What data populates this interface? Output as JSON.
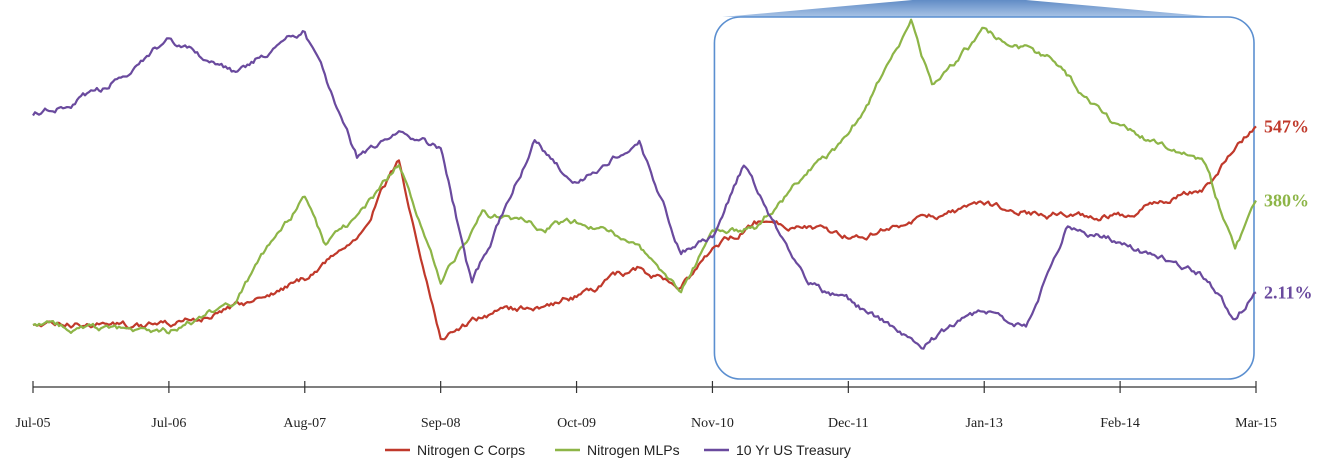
{
  "chart_data": {
    "type": "line",
    "title": "",
    "xlabel": "",
    "ylabel": "",
    "x_ticks": [
      "Jul-05",
      "Jul-06",
      "Aug-07",
      "Sep-08",
      "Oct-09",
      "Nov-10",
      "Dec-11",
      "Jan-13",
      "Feb-14",
      "Mar-15"
    ],
    "y_axis_shown": false,
    "grid": false,
    "legend_position": "bottom",
    "highlight_box": {
      "from": "Nov-10",
      "to": "Mar-15"
    },
    "series": [
      {
        "name": "Nitrogen C Corps",
        "color": "#c0392b",
        "end_label": "547%",
        "points": [
          [
            "Jul-05",
            100
          ],
          [
            "Jan-06",
            102
          ],
          [
            "Jul-06",
            98
          ],
          [
            "Jan-07",
            135
          ],
          [
            "Aug-07",
            205
          ],
          [
            "Jan-08",
            300
          ],
          [
            "May-08",
            470
          ],
          [
            "Sep-08",
            70
          ],
          [
            "Jan-09",
            120
          ],
          [
            "Jul-09",
            145
          ],
          [
            "Oct-09",
            165
          ],
          [
            "Apr-10",
            230
          ],
          [
            "Aug-10",
            180
          ],
          [
            "Nov-10",
            265
          ],
          [
            "Mar-11",
            330
          ],
          [
            "Aug-11",
            325
          ],
          [
            "Dec-11",
            300
          ],
          [
            "Jun-12",
            330
          ],
          [
            "Jan-13",
            370
          ],
          [
            "Jul-13",
            350
          ],
          [
            "Feb-14",
            345
          ],
          [
            "Oct-14",
            410
          ],
          [
            "Mar-15",
            547
          ]
        ]
      },
      {
        "name": "Nitrogen MLPs",
        "color": "#8db547",
        "end_label": "380%",
        "points": [
          [
            "Jul-05",
            100
          ],
          [
            "Jan-06",
            90
          ],
          [
            "Jul-06",
            85
          ],
          [
            "Jan-07",
            150
          ],
          [
            "Aug-07",
            390
          ],
          [
            "Oct-07",
            280
          ],
          [
            "Jan-08",
            340
          ],
          [
            "May-08",
            460
          ],
          [
            "Sep-08",
            190
          ],
          [
            "Jan-09",
            350
          ],
          [
            "Jul-09",
            320
          ],
          [
            "Oct-09",
            330
          ],
          [
            "Apr-10",
            280
          ],
          [
            "Aug-10",
            170
          ],
          [
            "Nov-10",
            310
          ],
          [
            "Mar-11",
            320
          ],
          [
            "Aug-11",
            440
          ],
          [
            "Dec-11",
            520
          ],
          [
            "Jun-12",
            780
          ],
          [
            "Aug-12",
            640
          ],
          [
            "Jan-13",
            760
          ],
          [
            "Jul-13",
            700
          ],
          [
            "Feb-14",
            540
          ],
          [
            "Oct-14",
            470
          ],
          [
            "Jan-15",
            270
          ],
          [
            "Mar-15",
            380
          ]
        ]
      },
      {
        "name": "10 Yr US Treasury",
        "color": "#6a4a9e",
        "end_label": "2.11%",
        "points": [
          [
            "Jul-05",
            4.2
          ],
          [
            "Jan-06",
            4.5
          ],
          [
            "Jul-06",
            5.1
          ],
          [
            "Jan-07",
            4.7
          ],
          [
            "Aug-07",
            5.2
          ],
          [
            "Jan-08",
            3.7
          ],
          [
            "May-08",
            4.0
          ],
          [
            "Sep-08",
            3.8
          ],
          [
            "Dec-08",
            2.2
          ],
          [
            "Jun-09",
            3.9
          ],
          [
            "Oct-09",
            3.4
          ],
          [
            "Apr-10",
            3.9
          ],
          [
            "Aug-10",
            2.6
          ],
          [
            "Nov-10",
            2.8
          ],
          [
            "Feb-11",
            3.6
          ],
          [
            "Aug-11",
            2.2
          ],
          [
            "Dec-11",
            2.0
          ],
          [
            "Jul-12",
            1.5
          ],
          [
            "Jan-13",
            1.9
          ],
          [
            "May-13",
            1.7
          ],
          [
            "Sep-13",
            2.9
          ],
          [
            "Feb-14",
            2.7
          ],
          [
            "Oct-14",
            2.3
          ],
          [
            "Jan-15",
            1.8
          ],
          [
            "Mar-15",
            2.11
          ]
        ]
      }
    ]
  }
}
